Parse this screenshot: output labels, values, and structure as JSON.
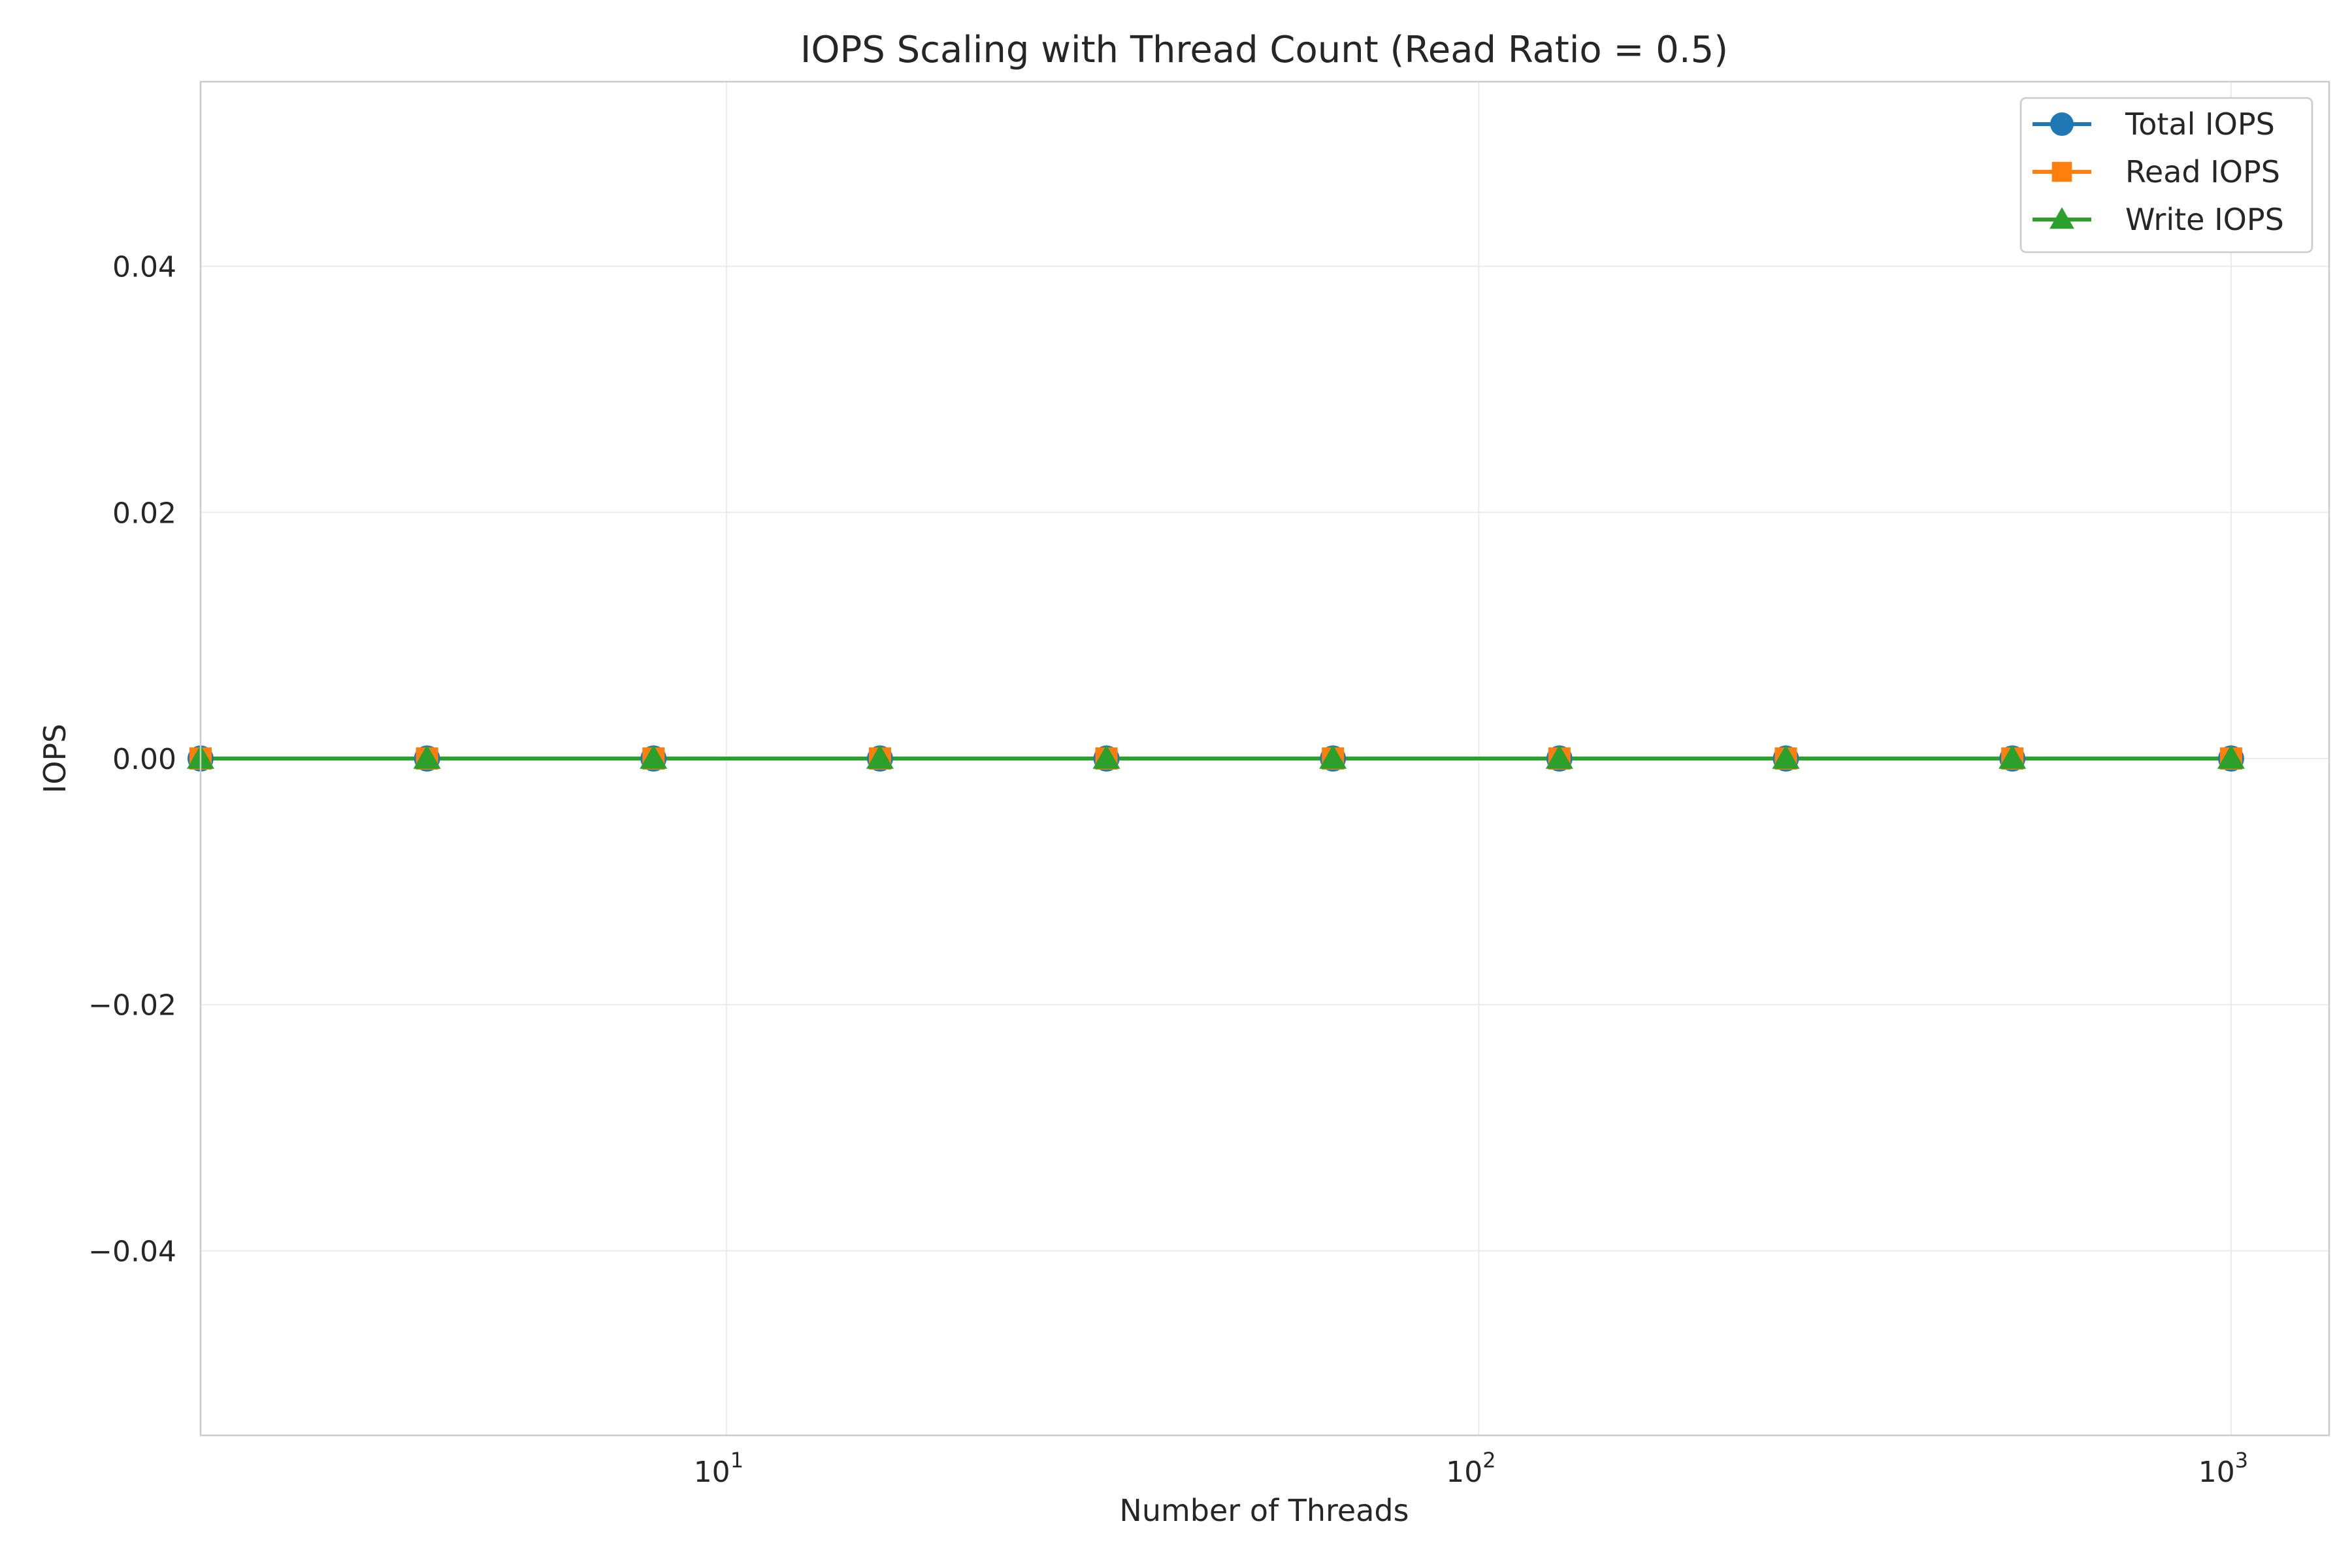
{
  "chart_data": {
    "type": "line",
    "title": "IOPS Scaling with Thread Count (Read Ratio = 0.5)",
    "xlabel": "Number of Threads",
    "ylabel": "IOPS",
    "x_scale": "log",
    "xlim": [
      2,
      1350
    ],
    "ylim": [
      -0.055,
      0.055
    ],
    "x": [
      2,
      4,
      8,
      16,
      32,
      64,
      128,
      256,
      512,
      1000
    ],
    "x_ticks": [
      {
        "value": 10,
        "base": "10",
        "exp": "1"
      },
      {
        "value": 100,
        "base": "10",
        "exp": "2"
      },
      {
        "value": 1000,
        "base": "10",
        "exp": "3"
      }
    ],
    "y_ticks": [
      {
        "value": 0.04,
        "label": "0.04"
      },
      {
        "value": 0.02,
        "label": "0.02"
      },
      {
        "value": 0.0,
        "label": "0.00"
      },
      {
        "value": -0.02,
        "label": "−0.02"
      },
      {
        "value": -0.04,
        "label": "−0.04"
      }
    ],
    "grid": true,
    "legend_position": "top-right",
    "series": [
      {
        "name": "Total IOPS",
        "marker": "circle",
        "color": "#1f77b4",
        "values": [
          0,
          0,
          0,
          0,
          0,
          0,
          0,
          0,
          0,
          0
        ]
      },
      {
        "name": "Read IOPS",
        "marker": "square",
        "color": "#ff7f0e",
        "values": [
          0,
          0,
          0,
          0,
          0,
          0,
          0,
          0,
          0,
          0
        ]
      },
      {
        "name": "Write IOPS",
        "marker": "triangle",
        "color": "#2ca02c",
        "values": [
          0,
          0,
          0,
          0,
          0,
          0,
          0,
          0,
          0,
          0
        ]
      }
    ]
  }
}
